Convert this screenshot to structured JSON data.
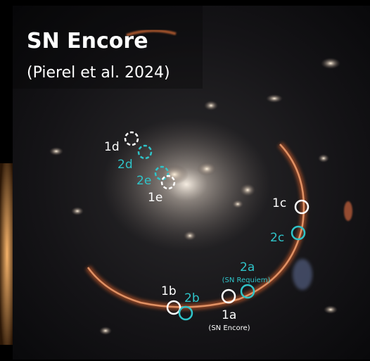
{
  "title": "SN Encore",
  "subtitle": "(Pierel et al. 2024)",
  "markers": [
    {
      "label": "1a",
      "note": "(SN Encore)"
    },
    {
      "label": "1b"
    },
    {
      "label": "1c"
    },
    {
      "label": "1d"
    },
    {
      "label": "1e"
    },
    {
      "label": "2a",
      "note": "(SN Requiem)"
    },
    {
      "label": "2b"
    },
    {
      "label": "2c"
    },
    {
      "label": "2d"
    },
    {
      "label": "2e"
    }
  ]
}
